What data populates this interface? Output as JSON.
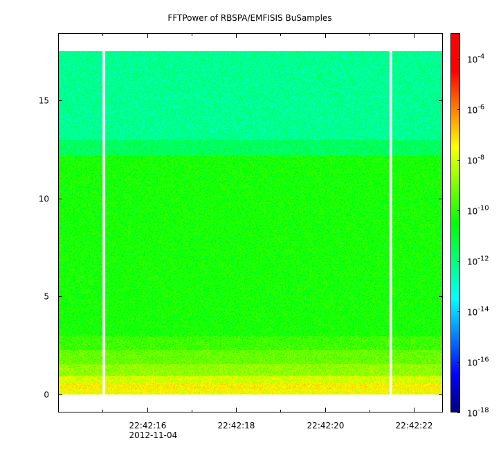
{
  "chart_data": {
    "type": "heatmap",
    "title": "FFTPower of RBSPA/EMFISIS  BuSamples",
    "x_ticks": [
      {
        "value": 16,
        "label": "22:42:16",
        "sublabel": "2012-11-04"
      },
      {
        "value": 18,
        "label": "22:42:18",
        "sublabel": ""
      },
      {
        "value": 20,
        "label": "22:42:20",
        "sublabel": ""
      },
      {
        "value": 22,
        "label": "22:42:22",
        "sublabel": ""
      }
    ],
    "x_minor_ticks": [
      15,
      17,
      19,
      21
    ],
    "xlim": [
      14.0,
      22.65
    ],
    "y_ticks": [
      0,
      5,
      10,
      15
    ],
    "ylim": [
      -0.9,
      18.4
    ],
    "data_extent": {
      "x": [
        14.0,
        22.65
      ],
      "y": [
        0,
        17.5
      ]
    },
    "gaps_x": [
      [
        15.0,
        15.06
      ],
      [
        21.45,
        21.51
      ]
    ],
    "power_bands_log10": [
      {
        "y": [
          0.0,
          0.3
        ],
        "log_power": -7.6
      },
      {
        "y": [
          0.3,
          0.6
        ],
        "log_power": -7.4
      },
      {
        "y": [
          0.6,
          1.0
        ],
        "log_power": -8.0
      },
      {
        "y": [
          1.0,
          1.6
        ],
        "log_power": -8.8
      },
      {
        "y": [
          1.6,
          2.3
        ],
        "log_power": -9.3
      },
      {
        "y": [
          2.3,
          3.0
        ],
        "log_power": -9.8
      },
      {
        "y": [
          3.0,
          12.2
        ],
        "log_power": -10.3
      },
      {
        "y": [
          12.2,
          13.0
        ],
        "log_power": -11.6
      },
      {
        "y": [
          13.0,
          17.5
        ],
        "log_power": -12.2
      }
    ],
    "colorbar": {
      "scale": "log",
      "range": [
        1e-18,
        0.001
      ],
      "ticks": [
        {
          "base": "10",
          "exp": "-4",
          "value": -4
        },
        {
          "base": "10",
          "exp": "-6",
          "value": -6
        },
        {
          "base": "10",
          "exp": "-8",
          "value": -8
        },
        {
          "base": "10",
          "exp": "-10",
          "value": -10
        },
        {
          "base": "10",
          "exp": "-12",
          "value": -12
        },
        {
          "base": "10",
          "exp": "-14",
          "value": -14
        },
        {
          "base": "10",
          "exp": "-16",
          "value": -16
        },
        {
          "base": "10",
          "exp": "-18",
          "value": -18
        }
      ],
      "colormap": [
        "#00007f",
        "#0000ff",
        "#007fff",
        "#00ffff",
        "#00ff80",
        "#00ff00",
        "#80ff00",
        "#ffff00",
        "#ff8000",
        "#ff0000",
        "#ff0000"
      ]
    }
  }
}
